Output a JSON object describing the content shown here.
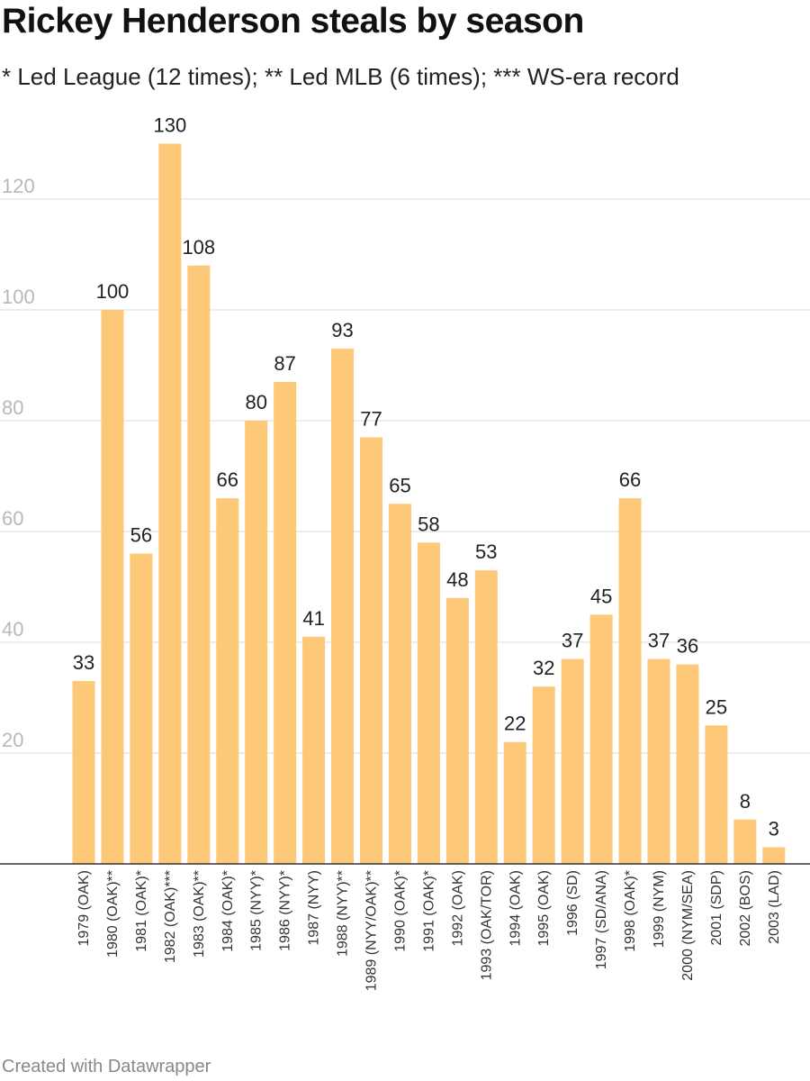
{
  "header": {
    "title": "Rickey Henderson steals by season",
    "subtitle": "* Led League (12 times); ** Led MLB (6 times); *** WS-era record"
  },
  "footer": {
    "credit": "Created with Datawrapper"
  },
  "colors": {
    "bar": "#fdc877",
    "grid": "#e2e2e2",
    "axis_tick_text": "#b8b8b8"
  },
  "chart_data": {
    "type": "bar",
    "title": "Rickey Henderson steals by season",
    "subtitle": "* Led League (12 times); ** Led MLB (6 times); *** WS-era record",
    "xlabel": "",
    "ylabel": "",
    "ylim": [
      0,
      130
    ],
    "yticks": [
      20,
      40,
      60,
      80,
      100,
      120
    ],
    "grid": true,
    "categories": [
      "1979 (OAK)",
      "1980 (OAK)**",
      "1981 (OAK)*",
      "1982 (OAK)***",
      "1983 (OAK)**",
      "1984 (OAK)*",
      "1985 (NYY)*",
      "1986 (NYY)*",
      "1987 (NYY)",
      "1988 (NYY)**",
      "1989 (NYY/OAK)**",
      "1990 (OAK)*",
      "1991 (OAK)*",
      "1992 (OAK)",
      "1993 (OAK/TOR)",
      "1994 (OAK)",
      "1995 (OAK)",
      "1996 (SD)",
      "1997 (SD/ANA)",
      "1998 (OAK)*",
      "1999 (NYM)",
      "2000 (NYM/SEA)",
      "2001 (SDP)",
      "2002 (BOS)",
      "2003 (LAD)"
    ],
    "values": [
      33,
      100,
      56,
      130,
      108,
      66,
      80,
      87,
      41,
      93,
      77,
      65,
      58,
      48,
      53,
      22,
      32,
      37,
      45,
      66,
      37,
      36,
      25,
      8,
      3
    ]
  }
}
